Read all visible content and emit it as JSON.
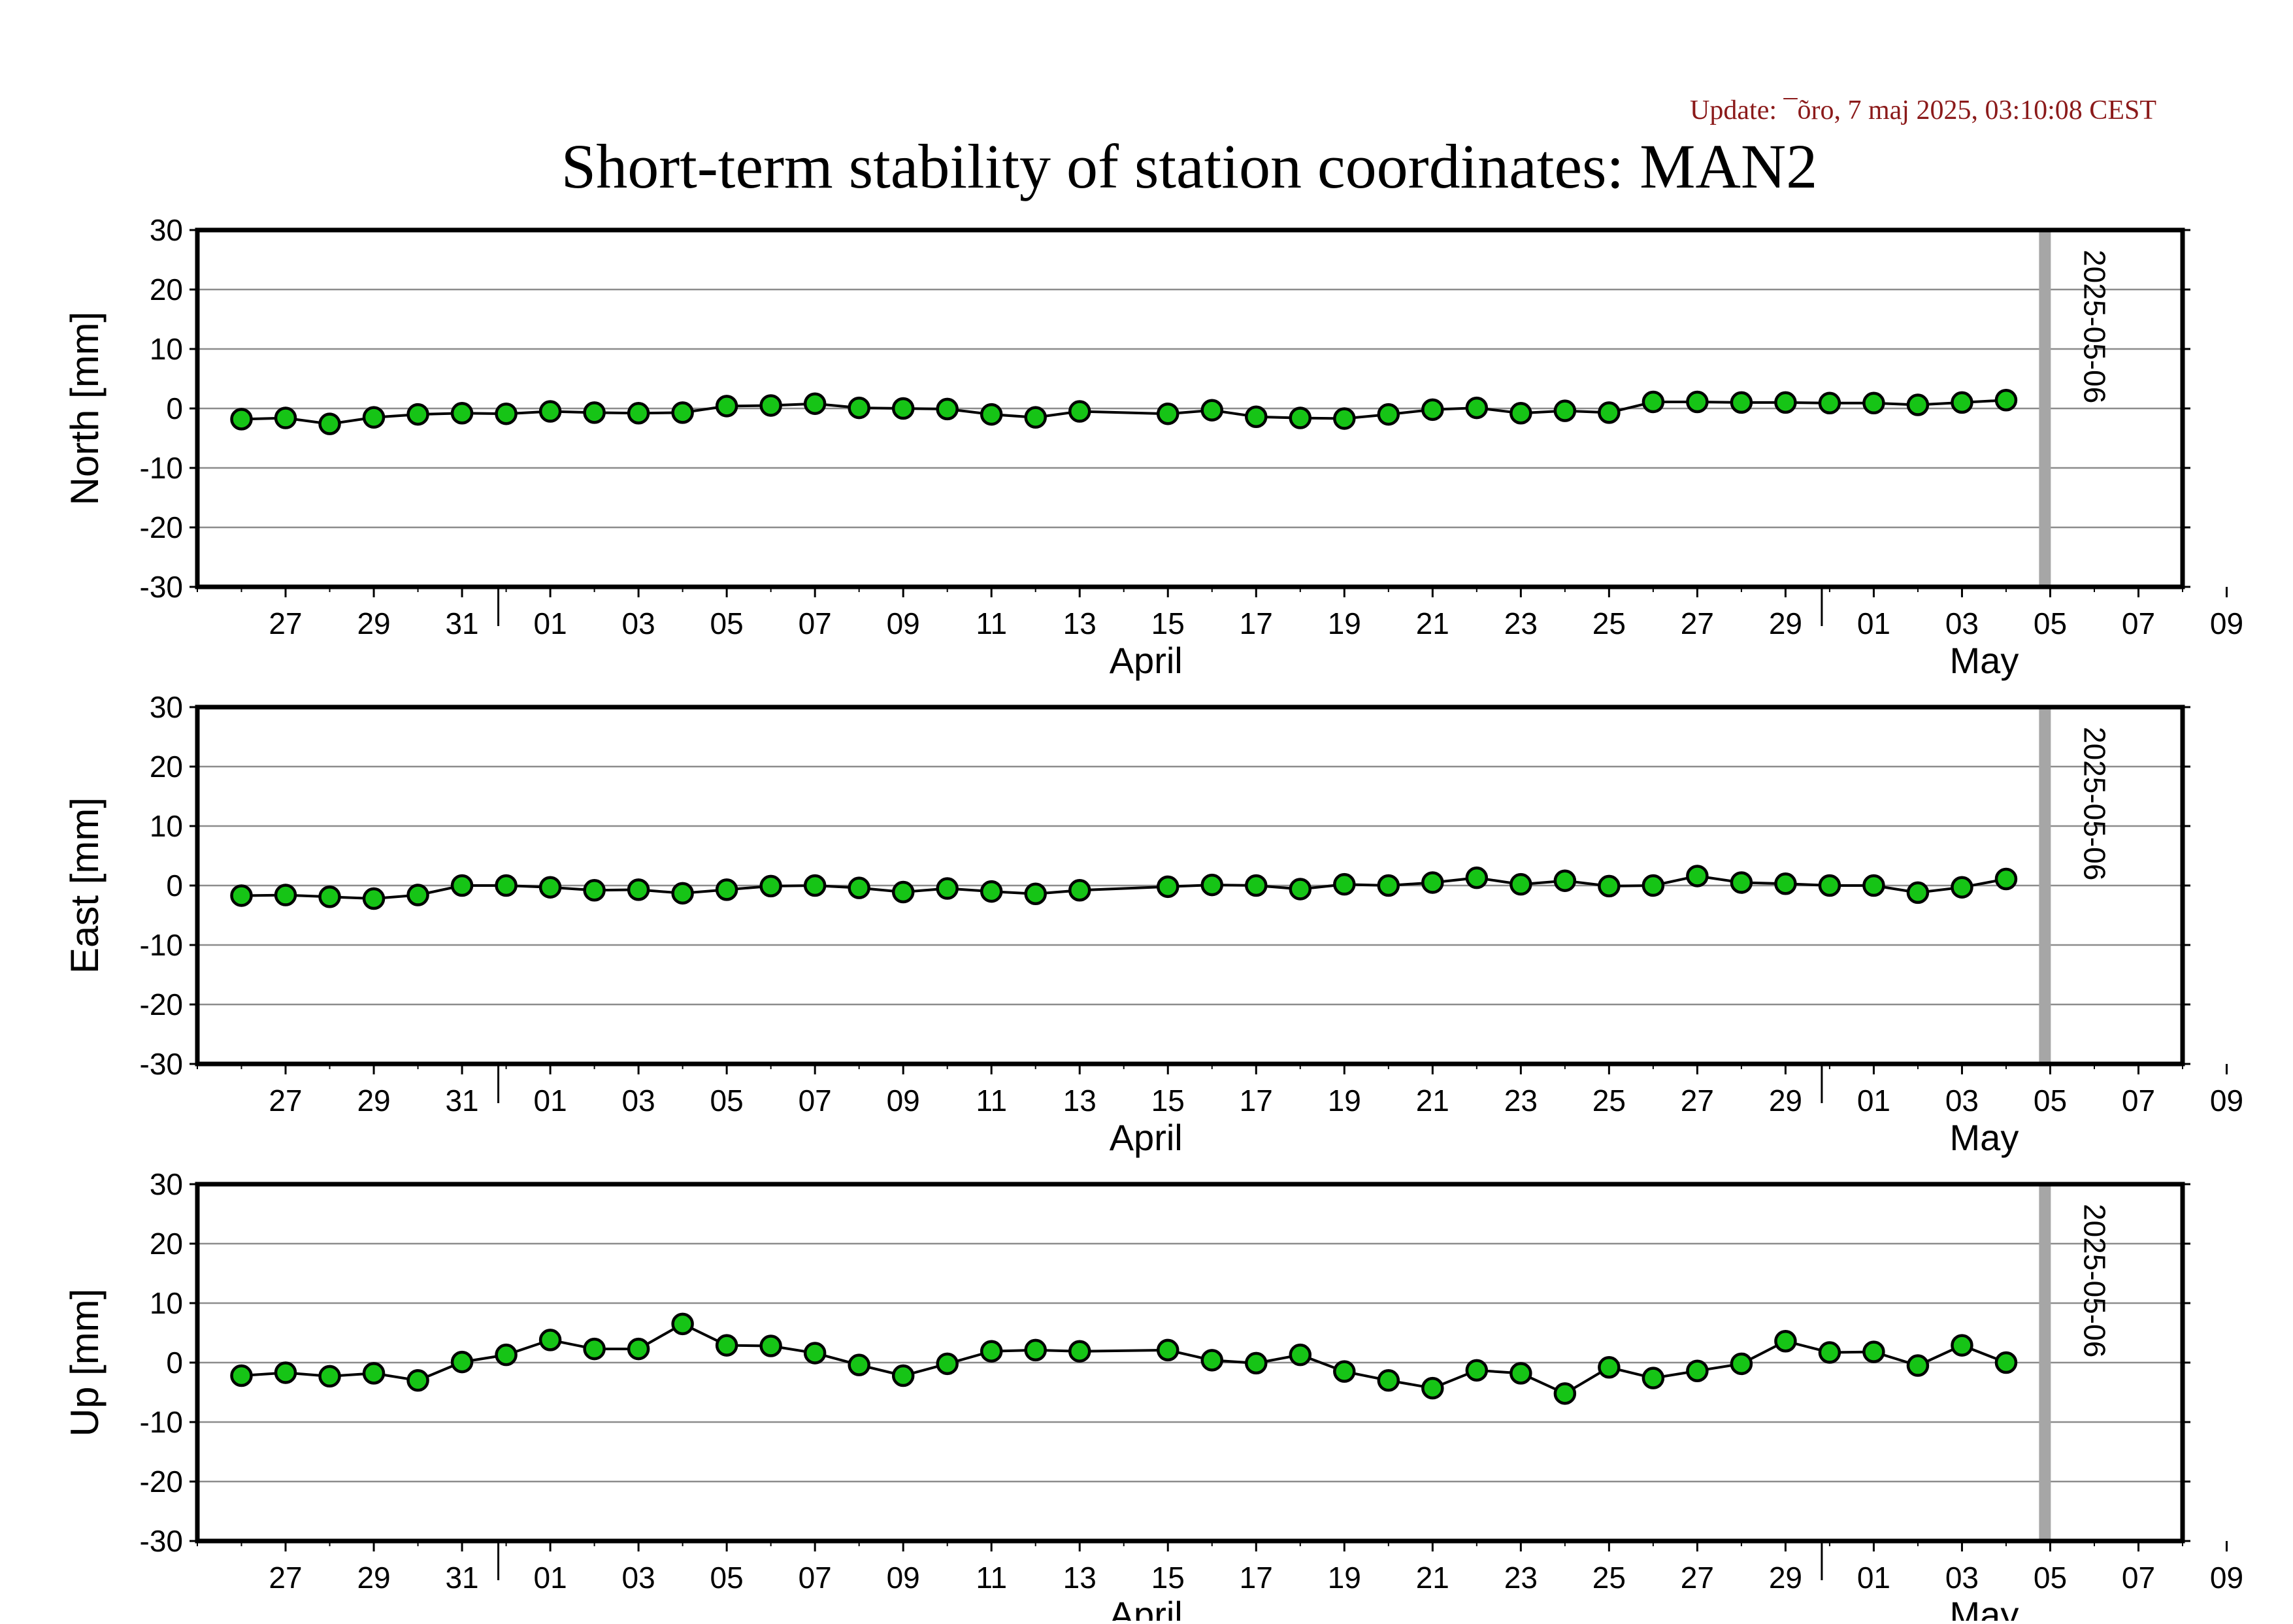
{
  "update_text": "Update: ¯õro, 7 maj 2025, 03:10:08 CEST",
  "title": "Short-term stability of station coordinates: MAN2",
  "colors": {
    "update_text": "#8b1a1a",
    "marker_fill": "#16c416",
    "marker_stroke": "#000000",
    "series_line": "#000000",
    "gridline": "#8c8c8c",
    "marker_line": "#a6a6a6",
    "frame": "#000000"
  },
  "chart_data": [
    {
      "type": "line",
      "ylabel": "North [mm]",
      "ylim": [
        -30,
        30
      ],
      "yticks": [
        30,
        20,
        10,
        0,
        -10,
        -20,
        -30
      ],
      "xlim": [
        "2025-03-25",
        "2025-05-09"
      ],
      "x_tick_labels": [
        "27",
        "29",
        "31",
        "01",
        "03",
        "05",
        "07",
        "09",
        "11",
        "13",
        "15",
        "17",
        "19",
        "21",
        "23",
        "25",
        "27",
        "29",
        "01",
        "03",
        "05",
        "07",
        "09"
      ],
      "month_labels": [
        "April",
        "May"
      ],
      "vline_label": "2025-05-06",
      "grid": true,
      "x": [
        "2025-03-26",
        "2025-03-27",
        "2025-03-28",
        "2025-03-29",
        "2025-03-30",
        "2025-03-31",
        "2025-04-01",
        "2025-04-02",
        "2025-04-03",
        "2025-04-04",
        "2025-04-05",
        "2025-04-06",
        "2025-04-07",
        "2025-04-08",
        "2025-04-09",
        "2025-04-10",
        "2025-04-11",
        "2025-04-12",
        "2025-04-13",
        "2025-04-14",
        "2025-04-16",
        "2025-04-17",
        "2025-04-18",
        "2025-04-19",
        "2025-04-20",
        "2025-04-21",
        "2025-04-22",
        "2025-04-23",
        "2025-04-24",
        "2025-04-25",
        "2025-04-26",
        "2025-04-27",
        "2025-04-28",
        "2025-04-29",
        "2025-04-30",
        "2025-05-01",
        "2025-05-02",
        "2025-05-03",
        "2025-05-04",
        "2025-05-05"
      ],
      "y": [
        -1.8,
        -1.6,
        -2.6,
        -1.5,
        -1.0,
        -0.8,
        -0.9,
        -0.5,
        -0.7,
        -0.8,
        -0.7,
        0.4,
        0.5,
        0.8,
        0.1,
        0.0,
        -0.1,
        -1.0,
        -1.5,
        -0.5,
        -0.9,
        -0.3,
        -1.4,
        -1.6,
        -1.7,
        -1.0,
        -0.2,
        0.1,
        -0.8,
        -0.4,
        -0.7,
        1.1,
        1.1,
        1.0,
        1.0,
        0.9,
        0.9,
        0.6,
        1.0,
        1.4
      ]
    },
    {
      "type": "line",
      "ylabel": "East [mm]",
      "ylim": [
        -30,
        30
      ],
      "yticks": [
        30,
        20,
        10,
        0,
        -10,
        -20,
        -30
      ],
      "xlim": [
        "2025-03-25",
        "2025-05-09"
      ],
      "x_tick_labels": [
        "27",
        "29",
        "31",
        "01",
        "03",
        "05",
        "07",
        "09",
        "11",
        "13",
        "15",
        "17",
        "19",
        "21",
        "23",
        "25",
        "27",
        "29",
        "01",
        "03",
        "05",
        "07",
        "09"
      ],
      "month_labels": [
        "April",
        "May"
      ],
      "vline_label": "2025-05-06",
      "grid": true,
      "x": [
        "2025-03-26",
        "2025-03-27",
        "2025-03-28",
        "2025-03-29",
        "2025-03-30",
        "2025-03-31",
        "2025-04-01",
        "2025-04-02",
        "2025-04-03",
        "2025-04-04",
        "2025-04-05",
        "2025-04-06",
        "2025-04-07",
        "2025-04-08",
        "2025-04-09",
        "2025-04-10",
        "2025-04-11",
        "2025-04-12",
        "2025-04-13",
        "2025-04-14",
        "2025-04-16",
        "2025-04-17",
        "2025-04-18",
        "2025-04-19",
        "2025-04-20",
        "2025-04-21",
        "2025-04-22",
        "2025-04-23",
        "2025-04-24",
        "2025-04-25",
        "2025-04-26",
        "2025-04-27",
        "2025-04-28",
        "2025-04-29",
        "2025-04-30",
        "2025-05-01",
        "2025-05-02",
        "2025-05-03",
        "2025-05-04",
        "2025-05-05"
      ],
      "y": [
        -1.7,
        -1.6,
        -1.9,
        -2.2,
        -1.6,
        0.0,
        0.0,
        -0.3,
        -0.8,
        -0.7,
        -1.3,
        -0.7,
        -0.1,
        0.0,
        -0.4,
        -1.1,
        -0.5,
        -1.0,
        -1.4,
        -0.8,
        -0.2,
        0.1,
        0.0,
        -0.6,
        0.2,
        0.0,
        0.5,
        1.3,
        0.2,
        0.8,
        -0.1,
        0.0,
        1.6,
        0.5,
        0.3,
        0.0,
        0.0,
        -1.2,
        -0.3,
        1.1
      ]
    },
    {
      "type": "line",
      "ylabel": "Up [mm]",
      "ylim": [
        -30,
        30
      ],
      "yticks": [
        30,
        20,
        10,
        0,
        -10,
        -20,
        -30
      ],
      "xlim": [
        "2025-03-25",
        "2025-05-09"
      ],
      "x_tick_labels": [
        "27",
        "29",
        "31",
        "01",
        "03",
        "05",
        "07",
        "09",
        "11",
        "13",
        "15",
        "17",
        "19",
        "21",
        "23",
        "25",
        "27",
        "29",
        "01",
        "03",
        "05",
        "07",
        "09"
      ],
      "month_labels": [
        "April",
        "May"
      ],
      "vline_label": "2025-05-06",
      "grid": true,
      "x": [
        "2025-03-26",
        "2025-03-27",
        "2025-03-28",
        "2025-03-29",
        "2025-03-30",
        "2025-03-31",
        "2025-04-01",
        "2025-04-02",
        "2025-04-03",
        "2025-04-04",
        "2025-04-05",
        "2025-04-06",
        "2025-04-07",
        "2025-04-08",
        "2025-04-09",
        "2025-04-10",
        "2025-04-11",
        "2025-04-12",
        "2025-04-13",
        "2025-04-14",
        "2025-04-16",
        "2025-04-17",
        "2025-04-18",
        "2025-04-19",
        "2025-04-20",
        "2025-04-21",
        "2025-04-22",
        "2025-04-23",
        "2025-04-24",
        "2025-04-25",
        "2025-04-26",
        "2025-04-27",
        "2025-04-28",
        "2025-04-29",
        "2025-04-30",
        "2025-05-01",
        "2025-05-02",
        "2025-05-03",
        "2025-05-04",
        "2025-05-05"
      ],
      "y": [
        -2.2,
        -1.7,
        -2.3,
        -1.8,
        -3.0,
        0.1,
        1.3,
        3.8,
        2.3,
        2.3,
        6.5,
        2.9,
        2.8,
        1.6,
        -0.4,
        -2.2,
        -0.2,
        1.9,
        2.1,
        1.9,
        2.1,
        0.4,
        -0.1,
        1.3,
        -1.5,
        -3.0,
        -4.3,
        -1.3,
        -1.8,
        -5.2,
        -0.8,
        -2.6,
        -1.4,
        -0.2,
        3.6,
        1.7,
        1.8,
        -0.5,
        2.9,
        0.0
      ]
    }
  ]
}
